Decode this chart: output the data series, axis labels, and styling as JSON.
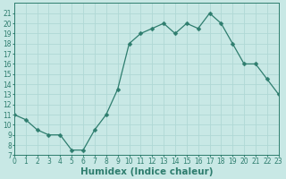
{
  "x": [
    0,
    1,
    2,
    3,
    4,
    5,
    6,
    7,
    8,
    9,
    10,
    11,
    12,
    13,
    14,
    15,
    16,
    17,
    18,
    19,
    20,
    21,
    22,
    23
  ],
  "y": [
    11,
    10.5,
    9.5,
    9,
    9,
    7.5,
    7.5,
    9.5,
    11,
    13.5,
    18,
    19,
    19.5,
    20,
    19,
    20,
    19.5,
    21,
    20,
    18,
    16,
    16,
    14.5,
    13
  ],
  "line_color": "#2e7d6e",
  "marker_color": "#2e7d6e",
  "bg_color": "#c8e8e5",
  "grid_color": "#b0d8d5",
  "xlabel": "Humidex (Indice chaleur)",
  "xlim": [
    0,
    23
  ],
  "ylim": [
    7,
    22
  ],
  "yticks": [
    7,
    8,
    9,
    10,
    11,
    12,
    13,
    14,
    15,
    16,
    17,
    18,
    19,
    20,
    21
  ],
  "xticks": [
    0,
    1,
    2,
    3,
    4,
    5,
    6,
    7,
    8,
    9,
    10,
    11,
    12,
    13,
    14,
    15,
    16,
    17,
    18,
    19,
    20,
    21,
    22,
    23
  ],
  "tick_fontsize": 5.5,
  "xlabel_fontsize": 7.5,
  "marker_size": 2.5,
  "linewidth": 0.9
}
